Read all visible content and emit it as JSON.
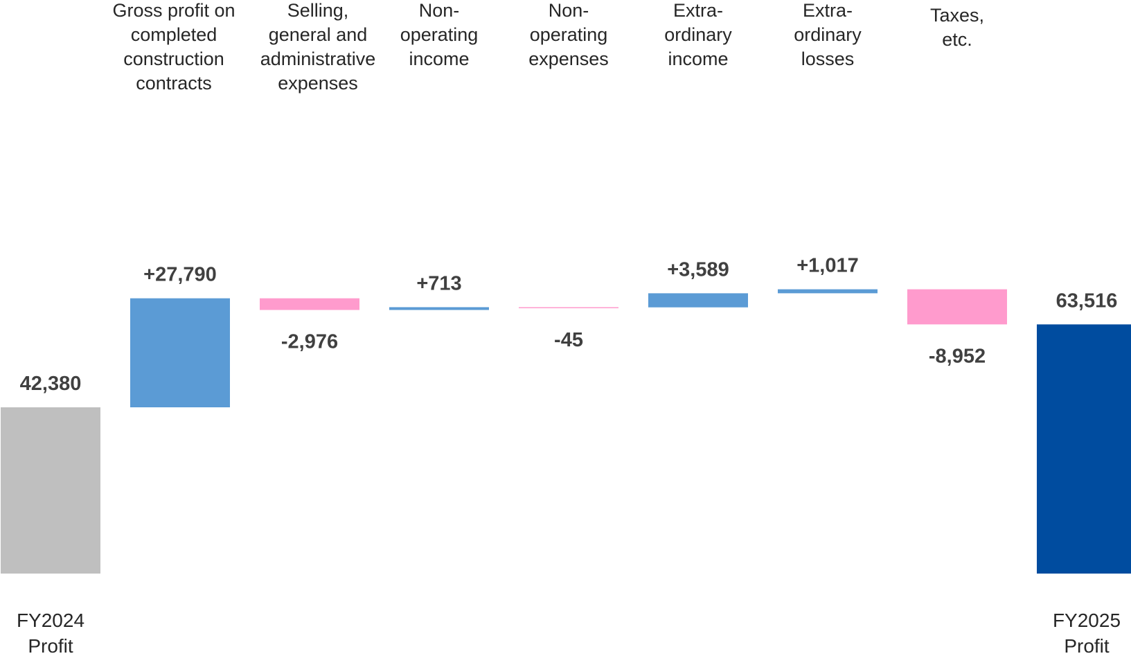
{
  "chart_data": {
    "type": "bar",
    "subtype": "waterfall",
    "categories": [
      [
        "FY2024",
        "Profit"
      ],
      [
        "Gross profit on",
        "completed",
        "construction",
        "contracts"
      ],
      [
        "Selling,",
        "general and",
        "administrative",
        "expenses"
      ],
      [
        "Non-",
        "operating",
        "income"
      ],
      [
        "Non-",
        "operating",
        "expenses"
      ],
      [
        "Extra-",
        "ordinary",
        "income"
      ],
      [
        "Extra-",
        "ordinary",
        "losses"
      ],
      [
        "Taxes,",
        "etc."
      ],
      [
        "FY2025",
        "Profit"
      ]
    ],
    "values": [
      42380,
      27790,
      -2976,
      713,
      -45,
      3589,
      1017,
      -8952,
      63516
    ],
    "value_labels": [
      "42,380",
      "+27,790",
      "-2,976",
      "+713",
      "-45",
      "+3,589",
      "+1,017",
      "-8,952",
      "63,516"
    ],
    "kinds": [
      "total",
      "delta",
      "delta",
      "delta",
      "delta",
      "delta",
      "delta",
      "delta",
      "total"
    ],
    "ylim": [
      0,
      70000
    ],
    "grid": false,
    "legend": "none",
    "colors": {
      "start_total": "#bfbfbf",
      "end_total": "#004c9f",
      "increase": "#5b9bd5",
      "decrease": "#ff9bcd"
    }
  }
}
